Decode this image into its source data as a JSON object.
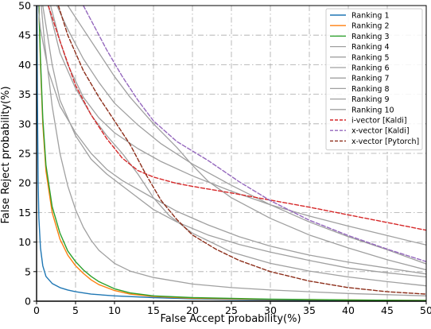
{
  "chart_data": {
    "type": "line",
    "title": "",
    "xlabel": "False Accept probability(%)",
    "ylabel": "False Reject probability(%)",
    "xlim": [
      0,
      50
    ],
    "ylim": [
      0,
      50
    ],
    "xticks": [
      "0",
      "5",
      "10",
      "15",
      "20",
      "25",
      "30",
      "35",
      "40",
      "45",
      "50"
    ],
    "yticks": [
      "0",
      "5",
      "10",
      "15",
      "20",
      "25",
      "30",
      "35",
      "40",
      "45",
      "50"
    ],
    "grid": true,
    "legend_position": "top-right",
    "series": [
      {
        "name": "Ranking 1",
        "color": "#1f77b4",
        "style": "solid",
        "width": 1.4,
        "points": [
          [
            0.05,
            50
          ],
          [
            0.1,
            35
          ],
          [
            0.2,
            20
          ],
          [
            0.3,
            14
          ],
          [
            0.5,
            9
          ],
          [
            0.8,
            6
          ],
          [
            1.2,
            4.2
          ],
          [
            2,
            3
          ],
          [
            3,
            2.3
          ],
          [
            4,
            1.9
          ],
          [
            5,
            1.6
          ],
          [
            7,
            1.2
          ],
          [
            10,
            0.9
          ],
          [
            15,
            0.6
          ],
          [
            20,
            0.4
          ],
          [
            30,
            0.2
          ],
          [
            40,
            0.12
          ],
          [
            50,
            0.08
          ]
        ]
      },
      {
        "name": "Ranking 2",
        "color": "#ff7f0e",
        "style": "solid",
        "width": 1.4,
        "points": [
          [
            0.3,
            50
          ],
          [
            0.5,
            40
          ],
          [
            0.8,
            30
          ],
          [
            1.2,
            22
          ],
          [
            2,
            15
          ],
          [
            3,
            10.5
          ],
          [
            4,
            7.8
          ],
          [
            5,
            6
          ],
          [
            6,
            4.7
          ],
          [
            7,
            3.6
          ],
          [
            8,
            2.8
          ],
          [
            10,
            1.8
          ],
          [
            12,
            1.2
          ],
          [
            15,
            0.8
          ],
          [
            20,
            0.5
          ],
          [
            30,
            0.3
          ],
          [
            40,
            0.2
          ],
          [
            50,
            0.12
          ]
        ]
      },
      {
        "name": "Ranking 3",
        "color": "#2ca02c",
        "style": "solid",
        "width": 1.4,
        "points": [
          [
            0.3,
            50
          ],
          [
            0.5,
            41
          ],
          [
            0.8,
            31
          ],
          [
            1.2,
            23
          ],
          [
            2,
            16
          ],
          [
            3,
            11.5
          ],
          [
            4,
            8.5
          ],
          [
            5,
            6.7
          ],
          [
            6,
            5.3
          ],
          [
            7,
            4.2
          ],
          [
            8,
            3.3
          ],
          [
            10,
            2.1
          ],
          [
            12,
            1.4
          ],
          [
            15,
            0.9
          ],
          [
            20,
            0.6
          ],
          [
            30,
            0.35
          ],
          [
            40,
            0.2
          ],
          [
            50,
            0.12
          ]
        ]
      },
      {
        "name": "Ranking 4",
        "color": "#a0a0a0",
        "style": "solid",
        "width": 1.3,
        "points": [
          [
            0.6,
            50
          ],
          [
            1,
            44
          ],
          [
            2,
            33
          ],
          [
            3,
            25
          ],
          [
            4,
            19.5
          ],
          [
            5,
            15.5
          ],
          [
            6,
            12.5
          ],
          [
            7,
            10.3
          ],
          [
            8,
            8.6
          ],
          [
            10,
            6.4
          ],
          [
            12,
            5.1
          ],
          [
            15,
            4
          ],
          [
            20,
            2.9
          ],
          [
            25,
            2.3
          ],
          [
            30,
            1.9
          ],
          [
            35,
            1.6
          ],
          [
            40,
            1.3
          ],
          [
            45,
            1.1
          ],
          [
            50,
            0.9
          ]
        ]
      },
      {
        "name": "Ranking 5",
        "color": "#a0a0a0",
        "style": "solid",
        "width": 1.3,
        "points": [
          [
            1.8,
            50
          ],
          [
            3,
            44
          ],
          [
            4,
            40
          ],
          [
            6,
            34.5
          ],
          [
            8,
            31
          ],
          [
            10,
            28.5
          ],
          [
            13,
            25.8
          ],
          [
            16,
            23.6
          ],
          [
            20,
            21.2
          ],
          [
            25,
            18.6
          ],
          [
            30,
            16.3
          ],
          [
            35,
            14.4
          ],
          [
            40,
            12.7
          ],
          [
            45,
            11.1
          ],
          [
            50,
            9.5
          ]
        ]
      },
      {
        "name": "Ranking 6",
        "color": "#a0a0a0",
        "style": "solid",
        "width": 1.3,
        "points": [
          [
            2.6,
            50
          ],
          [
            4,
            46
          ],
          [
            6,
            41
          ],
          [
            8,
            37
          ],
          [
            10,
            33.5
          ],
          [
            13,
            29.8
          ],
          [
            16,
            26.6
          ],
          [
            20,
            23.2
          ],
          [
            25,
            19.6
          ],
          [
            30,
            16.3
          ],
          [
            35,
            13.4
          ],
          [
            40,
            10.9
          ],
          [
            45,
            8.7
          ],
          [
            50,
            6.3
          ]
        ]
      },
      {
        "name": "Ranking 7",
        "color": "#a0a0a0",
        "style": "solid",
        "width": 1.3,
        "points": [
          [
            4,
            50
          ],
          [
            6,
            46
          ],
          [
            8,
            42
          ],
          [
            10,
            38
          ],
          [
            12,
            34.5
          ],
          [
            15,
            30
          ],
          [
            18,
            26
          ],
          [
            20,
            23
          ],
          [
            22,
            20.3
          ],
          [
            25,
            17.5
          ],
          [
            30,
            14
          ],
          [
            35,
            11.2
          ],
          [
            40,
            9
          ],
          [
            45,
            7
          ],
          [
            50,
            5.3
          ]
        ]
      },
      {
        "name": "Ranking 8",
        "color": "#a0a0a0",
        "style": "solid",
        "width": 1.3,
        "points": [
          [
            1.5,
            50
          ],
          [
            3,
            42
          ],
          [
            5,
            36
          ],
          [
            7,
            31.5
          ],
          [
            9,
            28
          ],
          [
            11,
            25
          ],
          [
            13,
            21.5
          ],
          [
            15,
            17.5
          ],
          [
            17,
            14.5
          ],
          [
            20,
            11.5
          ],
          [
            25,
            8.3
          ],
          [
            30,
            6.4
          ],
          [
            35,
            5.1
          ],
          [
            40,
            4.1
          ],
          [
            45,
            3.3
          ],
          [
            50,
            2.6
          ]
        ]
      },
      {
        "name": "Ranking 9",
        "color": "#a0a0a0",
        "style": "solid",
        "width": 1.3,
        "points": [
          [
            0.8,
            50
          ],
          [
            2,
            40
          ],
          [
            3,
            34
          ],
          [
            5,
            28
          ],
          [
            7,
            24
          ],
          [
            9,
            21.5
          ],
          [
            12,
            18.5
          ],
          [
            15,
            15.5
          ],
          [
            18,
            13.4
          ],
          [
            22,
            11.2
          ],
          [
            26,
            9.6
          ],
          [
            30,
            8.3
          ],
          [
            35,
            6.9
          ],
          [
            40,
            5.6
          ],
          [
            45,
            4.8
          ],
          [
            50,
            4.1
          ]
        ]
      },
      {
        "name": "Ranking 10",
        "color": "#a0a0a0",
        "style": "solid",
        "width": 1.3,
        "points": [
          [
            0.2,
            50
          ],
          [
            0.5,
            46
          ],
          [
            1.5,
            39
          ],
          [
            3,
            33
          ],
          [
            5,
            28.5
          ],
          [
            7,
            25
          ],
          [
            9,
            22.3
          ],
          [
            11,
            20.4
          ],
          [
            15,
            17.4
          ],
          [
            18,
            15.2
          ],
          [
            22,
            12.9
          ],
          [
            26,
            10.9
          ],
          [
            30,
            9.3
          ],
          [
            35,
            7.8
          ],
          [
            40,
            6.6
          ],
          [
            45,
            5.6
          ],
          [
            50,
            4.6
          ]
        ]
      },
      {
        "name": "i-vector [Kaldi]",
        "color": "#d62728",
        "style": "dashed",
        "width": 1.4,
        "points": [
          [
            1.5,
            50
          ],
          [
            3,
            44
          ],
          [
            5,
            36.5
          ],
          [
            7,
            31.5
          ],
          [
            9,
            27.5
          ],
          [
            11,
            24.2
          ],
          [
            13,
            22.1
          ],
          [
            15,
            21
          ],
          [
            18,
            19.9
          ],
          [
            21,
            19.2
          ],
          [
            25,
            18.3
          ],
          [
            30,
            17.1
          ],
          [
            35,
            15.9
          ],
          [
            40,
            14.6
          ],
          [
            45,
            13.3
          ],
          [
            50,
            12
          ]
        ]
      },
      {
        "name": "x-vector [Kaldi]",
        "color": "#9467bd",
        "style": "dashed",
        "width": 1.4,
        "points": [
          [
            6,
            50
          ],
          [
            7,
            47.5
          ],
          [
            9,
            42.5
          ],
          [
            11,
            38
          ],
          [
            13,
            34
          ],
          [
            15,
            30.5
          ],
          [
            18,
            27
          ],
          [
            22,
            23.8
          ],
          [
            26,
            20.2
          ],
          [
            30,
            17
          ],
          [
            35,
            13.7
          ],
          [
            40,
            11.1
          ],
          [
            45,
            8.8
          ],
          [
            50,
            6.7
          ]
        ]
      },
      {
        "name": "x-vector [Pytorch]",
        "color": "#8c2d19",
        "style": "dashed",
        "width": 1.4,
        "points": [
          [
            2.8,
            50
          ],
          [
            4,
            45
          ],
          [
            6,
            39
          ],
          [
            8,
            34.5
          ],
          [
            10,
            30.5
          ],
          [
            12,
            26.5
          ],
          [
            14,
            21.5
          ],
          [
            16,
            17
          ],
          [
            18,
            13.8
          ],
          [
            20,
            11.2
          ],
          [
            23,
            8.8
          ],
          [
            26,
            6.9
          ],
          [
            30,
            5
          ],
          [
            35,
            3.4
          ],
          [
            40,
            2.3
          ],
          [
            45,
            1.6
          ],
          [
            50,
            1.2
          ]
        ]
      }
    ]
  }
}
